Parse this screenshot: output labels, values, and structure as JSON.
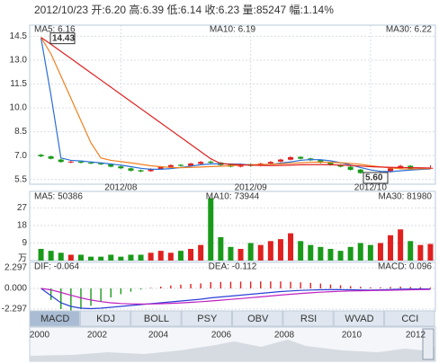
{
  "header": "2012/10/23 开:6.20 高:6.39 低:6.14 收:6.23 量:85247 幅:1.14%",
  "chart_data": [
    {
      "type": "candlestick",
      "categories": [
        null,
        null,
        null,
        null,
        null,
        null,
        null,
        null,
        "2012/08",
        null,
        null,
        null,
        null,
        null,
        null,
        null,
        null,
        null,
        null,
        null,
        null,
        "2012/09",
        null,
        null,
        null,
        null,
        null,
        null,
        null,
        null,
        null,
        null,
        null,
        "2012/10",
        null,
        null,
        null,
        null,
        null,
        null
      ],
      "open": [
        7.05,
        6.95,
        6.75,
        6.58,
        6.62,
        6.55,
        6.52,
        6.45,
        6.32,
        6.2,
        6.08,
        6.02,
        6.15,
        6.28,
        6.42,
        6.36,
        6.48,
        6.62,
        6.56,
        6.42,
        6.3,
        6.46,
        6.36,
        6.5,
        6.62,
        6.74,
        6.92,
        6.82,
        6.72,
        6.56,
        6.42,
        6.3,
        6.12,
        5.92,
        5.8,
        5.96,
        6.2,
        6.36,
        6.16,
        6.2
      ],
      "high": [
        7.1,
        7.0,
        6.8,
        6.7,
        6.68,
        6.6,
        6.56,
        6.48,
        6.36,
        6.24,
        6.12,
        6.2,
        6.34,
        6.45,
        6.46,
        6.55,
        6.66,
        6.68,
        6.6,
        6.45,
        6.5,
        6.5,
        6.55,
        6.65,
        6.8,
        6.96,
        6.95,
        6.86,
        6.75,
        6.6,
        6.46,
        6.34,
        6.16,
        5.96,
        6.0,
        6.26,
        6.42,
        6.4,
        6.24,
        6.39
      ],
      "low": [
        6.9,
        6.76,
        6.55,
        6.52,
        6.5,
        6.46,
        6.4,
        6.26,
        6.16,
        6.0,
        5.95,
        5.98,
        6.1,
        6.24,
        6.3,
        6.32,
        6.44,
        6.5,
        6.36,
        6.26,
        6.26,
        6.3,
        6.32,
        6.46,
        6.58,
        6.7,
        6.76,
        6.66,
        6.5,
        6.36,
        6.26,
        6.06,
        5.86,
        5.6,
        5.76,
        5.92,
        6.16,
        6.12,
        6.1,
        6.14
      ],
      "close": [
        6.95,
        6.8,
        6.6,
        6.62,
        6.55,
        6.5,
        6.45,
        6.3,
        6.2,
        6.05,
        6.0,
        6.15,
        6.3,
        6.4,
        6.35,
        6.5,
        6.6,
        6.55,
        6.4,
        6.3,
        6.45,
        6.35,
        6.5,
        6.6,
        6.75,
        6.9,
        6.8,
        6.7,
        6.55,
        6.4,
        6.3,
        6.1,
        5.9,
        5.8,
        5.95,
        6.2,
        6.35,
        6.15,
        6.2,
        6.23
      ],
      "up_color": "#e02020",
      "down_color": "#1a9a1a",
      "series": [
        {
          "name": "MA5: 6.16",
          "color": "#2a6fd6",
          "values": [
            14.4,
            10.8,
            6.85,
            6.7,
            6.66,
            6.6,
            6.54,
            6.47,
            6.4,
            6.3,
            6.2,
            6.14,
            6.14,
            6.18,
            6.25,
            6.34,
            6.42,
            6.48,
            6.48,
            6.47,
            6.46,
            6.41,
            6.41,
            6.44,
            6.53,
            6.6,
            6.7,
            6.75,
            6.74,
            6.67,
            6.55,
            6.41,
            6.25,
            6.1,
            6.01,
            5.99,
            6.04,
            6.09,
            6.13,
            6.16
          ]
        },
        {
          "name": "MA10: 6.19",
          "color": "#f08020",
          "values": [
            14.43,
            13.4,
            12.0,
            10.6,
            9.2,
            7.8,
            6.85,
            6.7,
            6.62,
            6.54,
            6.45,
            6.36,
            6.3,
            6.25,
            6.24,
            6.26,
            6.28,
            6.31,
            6.33,
            6.36,
            6.4,
            6.42,
            6.44,
            6.45,
            6.48,
            6.51,
            6.55,
            6.58,
            6.59,
            6.57,
            6.55,
            6.51,
            6.45,
            6.37,
            6.29,
            6.22,
            6.17,
            6.15,
            6.17,
            6.19
          ]
        },
        {
          "name": "MA30: 6.22",
          "color": "#e02020",
          "values": [
            14.43,
            14.0,
            13.55,
            13.1,
            12.65,
            12.2,
            11.75,
            11.3,
            10.85,
            10.4,
            9.95,
            9.5,
            9.05,
            8.6,
            8.15,
            7.7,
            7.25,
            6.8,
            6.5,
            6.45,
            6.42,
            6.4,
            6.38,
            6.37,
            6.38,
            6.4,
            6.42,
            6.43,
            6.43,
            6.42,
            6.4,
            6.38,
            6.34,
            6.3,
            6.28,
            6.26,
            6.25,
            6.24,
            6.23,
            6.22
          ]
        }
      ],
      "annotations": [
        "14.43",
        "5.60"
      ],
      "ylim": [
        5.2,
        15.2
      ],
      "yticks": [
        5.5,
        {
          "value": 7,
          "label": "7.0"
        },
        8.5,
        {
          "value": 10,
          "label": "10.0"
        },
        11.5,
        {
          "value": 13,
          "label": "13.0"
        },
        14.5
      ],
      "grid": true
    },
    {
      "type": "bar",
      "values": [
        6,
        5,
        4,
        3,
        3,
        2,
        2,
        3,
        2,
        3,
        3,
        4,
        5,
        4,
        5,
        6,
        8,
        32,
        12,
        7,
        6,
        9,
        8,
        10,
        11,
        14,
        10,
        8,
        7,
        6,
        5,
        7,
        9,
        8,
        9,
        13,
        16,
        10,
        8,
        8.52
      ],
      "annotations": [
        "MA5: 50386",
        "MA10: 73944",
        "MA30: 81980"
      ],
      "annotation_colors": [
        "#555555",
        "#f08020",
        "#e02020"
      ],
      "y_unit": "万",
      "ylim": [
        0,
        35.5
      ],
      "yticks": [
        9,
        18,
        27
      ],
      "grid": true
    },
    {
      "type": "macd",
      "series": [
        {
          "name": "DIF: -0.064",
          "color": "#2a3fd6",
          "values": [
            0,
            -0.8,
            -1.6,
            -2.0,
            -2.2,
            -2.25,
            -2.2,
            -2.1,
            -2.0,
            -1.9,
            -1.8,
            -1.7,
            -1.6,
            -1.5,
            -1.4,
            -1.3,
            -1.2,
            -1.05,
            -0.95,
            -0.85,
            -0.75,
            -0.65,
            -0.55,
            -0.45,
            -0.35,
            -0.28,
            -0.22,
            -0.18,
            -0.15,
            -0.14,
            -0.14,
            -0.15,
            -0.17,
            -0.18,
            -0.16,
            -0.12,
            -0.08,
            -0.07,
            -0.06,
            -0.064
          ]
        },
        {
          "name": "DEA: -0.112",
          "color": "#c020c0",
          "values": [
            0,
            -0.16,
            -0.45,
            -0.76,
            -1.05,
            -1.29,
            -1.47,
            -1.6,
            -1.68,
            -1.72,
            -1.74,
            -1.73,
            -1.7,
            -1.66,
            -1.61,
            -1.55,
            -1.48,
            -1.4,
            -1.31,
            -1.22,
            -1.13,
            -1.03,
            -0.94,
            -0.84,
            -0.74,
            -0.65,
            -0.56,
            -0.49,
            -0.42,
            -0.36,
            -0.32,
            -0.28,
            -0.26,
            -0.24,
            -0.22,
            -0.2,
            -0.18,
            -0.15,
            -0.13,
            -0.112
          ]
        }
      ],
      "histogram": {
        "name": "MACD: 0.096",
        "values": [
          0,
          -1.28,
          -2.3,
          -2.48,
          -2.3,
          -1.92,
          -1.46,
          -1.0,
          -0.64,
          -0.36,
          -0.12,
          0.06,
          0.2,
          0.32,
          0.42,
          0.5,
          0.56,
          0.7,
          0.72,
          0.74,
          0.76,
          0.76,
          0.78,
          0.78,
          0.78,
          0.74,
          0.68,
          0.62,
          0.54,
          0.44,
          0.36,
          0.26,
          0.18,
          0.12,
          0.12,
          0.16,
          0.2,
          0.16,
          0.14,
          0.096
        ]
      },
      "ylim": [
        -2.5,
        2.9
      ],
      "yticks": [
        -2.297,
        {
          "value": 0,
          "label": "0.000"
        },
        2.297
      ],
      "grid": true
    }
  ],
  "indicator_tabs": [
    "MACD",
    "KDJ",
    "BOLL",
    "PSY",
    "OBV",
    "RSI",
    "WVAD",
    "CCI"
  ],
  "navigator_years": [
    "2000",
    "2002",
    "2004",
    "2006",
    "2008",
    "2010",
    "2012"
  ]
}
